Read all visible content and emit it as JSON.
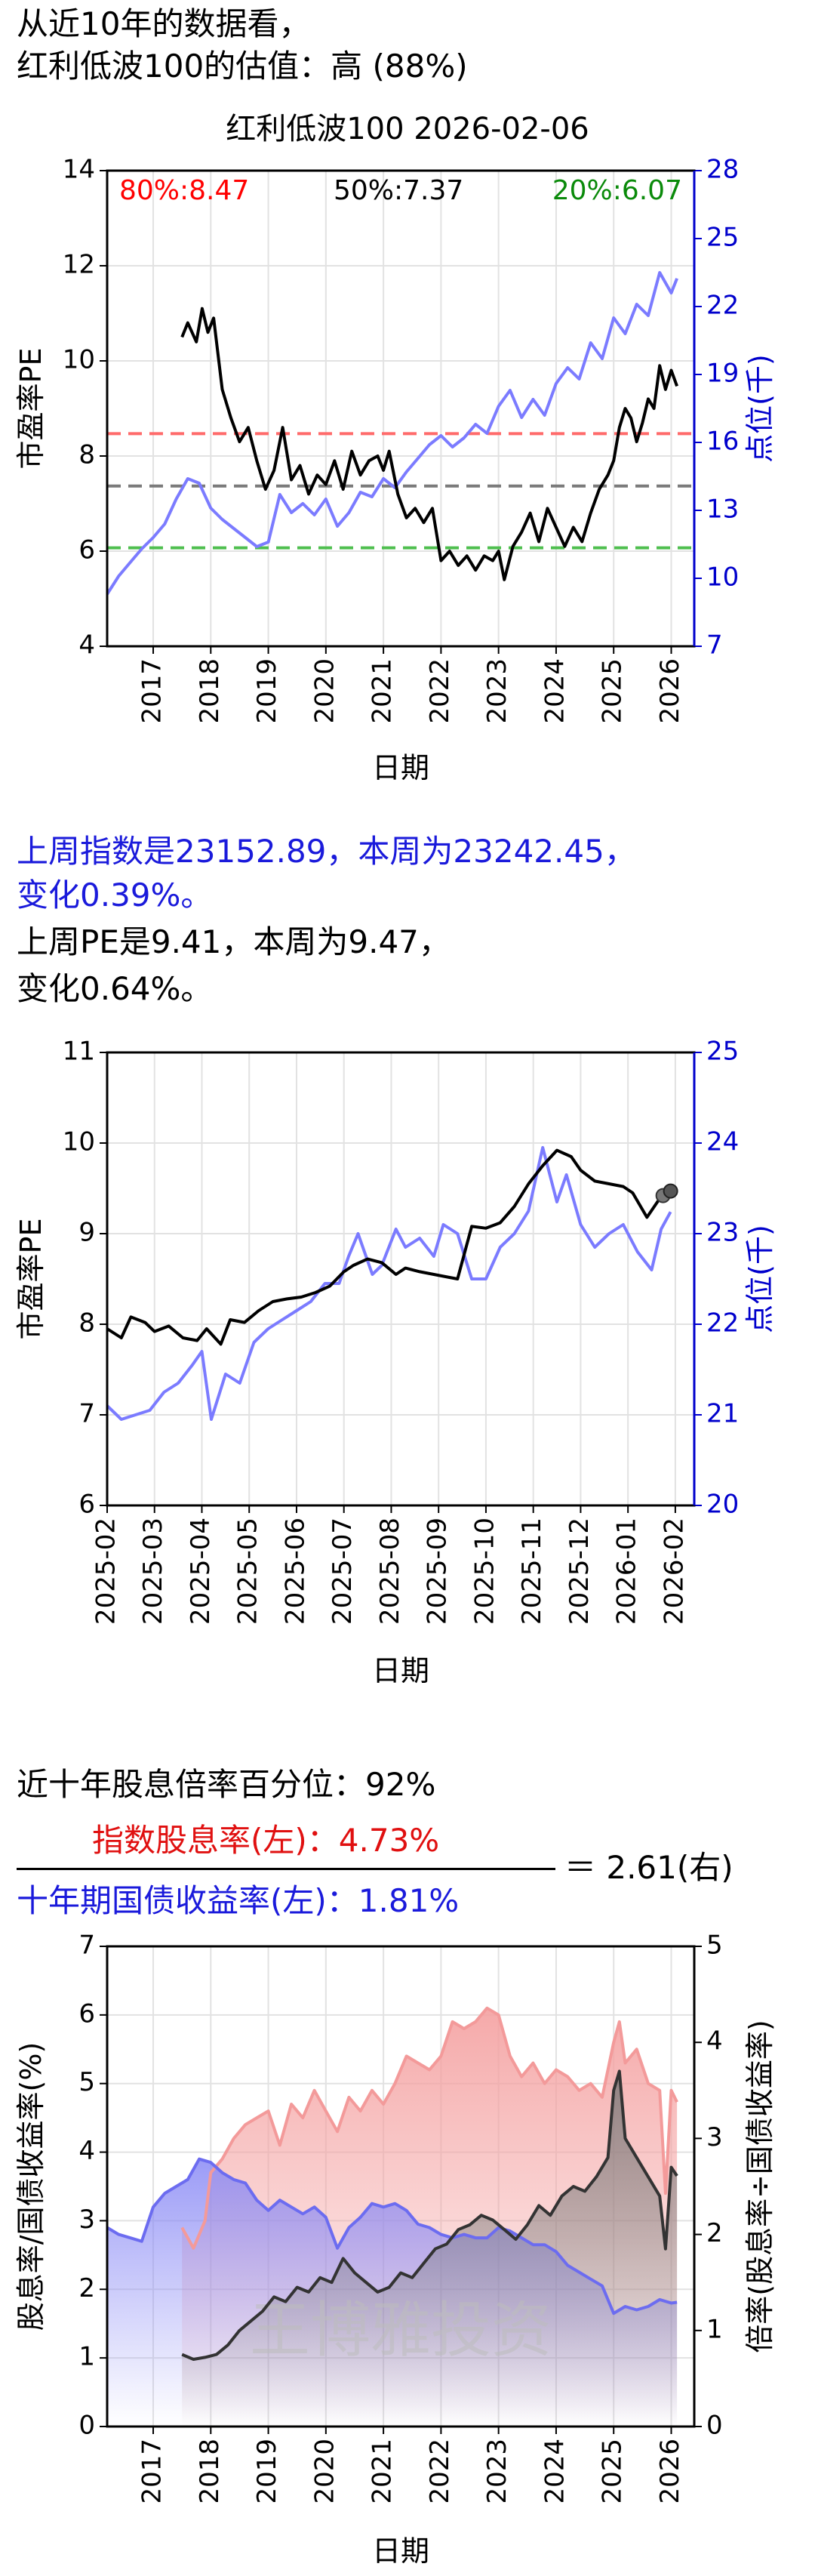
{
  "headline": {
    "line1": "从近10年的数据看，",
    "line2": "红利低波100的估值：高 (88%)"
  },
  "weekly": {
    "line1": "上周指数是23152.89，本周为23242.45，",
    "line2": "变化0.39%。",
    "line3": "上周PE是9.41，本周为9.47，",
    "line4": "变化0.64%。"
  },
  "dividend": {
    "percentile_text": "近十年股息倍率百分位：92%",
    "numerator_text": "指数股息率(左)：4.73%",
    "denominator_text": "十年期国债收益率(左)：1.81%",
    "ratio_text": "＝ 2.61(右)",
    "watermark": "王博雅投资"
  },
  "colors": {
    "pe": "#000000",
    "index": "#7b7bff",
    "p80": "#ff6b6b",
    "p50": "#7a7a7a",
    "p20": "#4fbf4f",
    "dividend": "#f39a9a",
    "bond": "#6c6cf0",
    "ratio": "#333333",
    "axis_right": "#0000cc"
  },
  "chart_data": [
    {
      "type": "line",
      "title": "红利低波100 2026-02-06",
      "xlabel": "日期",
      "ylabel": "市盈率PE",
      "ylabel_right": "点位(千)",
      "xlim": [
        2016.2,
        2026.4
      ],
      "ylim": [
        4,
        14
      ],
      "ylim_right": [
        7,
        28
      ],
      "x_ticks": [
        2017,
        2018,
        2019,
        2020,
        2021,
        2022,
        2023,
        2024,
        2025,
        2026
      ],
      "y_ticks": [
        4,
        6,
        8,
        10,
        12,
        14
      ],
      "y_ticks_right": [
        7,
        10,
        13,
        16,
        19,
        22,
        25,
        28
      ],
      "grid": true,
      "percentile_lines": [
        {
          "label": "80%:8.47",
          "value": 8.47,
          "color": "#ff6b6b"
        },
        {
          "label": "50%:7.37",
          "value": 7.37,
          "color": "#7a7a7a"
        },
        {
          "label": "20%:6.07",
          "value": 6.07,
          "color": "#4fbf4f"
        }
      ],
      "series": [
        {
          "name": "市盈率PE",
          "axis": "left",
          "x": [
            2017.5,
            2017.6,
            2017.75,
            2017.85,
            2017.95,
            2018.05,
            2018.2,
            2018.35,
            2018.5,
            2018.65,
            2018.8,
            2018.95,
            2019.1,
            2019.25,
            2019.4,
            2019.55,
            2019.7,
            2019.85,
            2020.0,
            2020.15,
            2020.3,
            2020.45,
            2020.6,
            2020.75,
            2020.9,
            2021.0,
            2021.1,
            2021.25,
            2021.4,
            2021.55,
            2021.7,
            2021.85,
            2022.0,
            2022.15,
            2022.3,
            2022.45,
            2022.6,
            2022.75,
            2022.9,
            2023.0,
            2023.1,
            2023.25,
            2023.4,
            2023.55,
            2023.7,
            2023.85,
            2024.0,
            2024.15,
            2024.3,
            2024.45,
            2024.6,
            2024.75,
            2024.9,
            2025.0,
            2025.1,
            2025.2,
            2025.3,
            2025.4,
            2025.5,
            2025.6,
            2025.7,
            2025.8,
            2025.9,
            2026.0,
            2026.1
          ],
          "y": [
            10.5,
            10.8,
            10.4,
            11.1,
            10.6,
            10.9,
            9.4,
            8.8,
            8.3,
            8.6,
            7.9,
            7.3,
            7.7,
            8.6,
            7.5,
            7.8,
            7.2,
            7.6,
            7.4,
            7.9,
            7.3,
            8.1,
            7.6,
            7.9,
            8.0,
            7.7,
            8.1,
            7.2,
            6.7,
            6.9,
            6.6,
            6.9,
            5.8,
            6.0,
            5.7,
            5.9,
            5.6,
            5.9,
            5.8,
            6.0,
            5.4,
            6.1,
            6.4,
            6.8,
            6.2,
            6.9,
            6.5,
            6.1,
            6.5,
            6.2,
            6.8,
            7.3,
            7.6,
            7.9,
            8.6,
            9.0,
            8.8,
            8.3,
            8.7,
            9.2,
            9.0,
            9.9,
            9.4,
            9.8,
            9.47
          ]
        },
        {
          "name": "点位(千)",
          "axis": "right",
          "x": [
            2016.2,
            2016.4,
            2016.6,
            2016.8,
            2017.0,
            2017.2,
            2017.4,
            2017.6,
            2017.8,
            2018.0,
            2018.2,
            2018.4,
            2018.6,
            2018.8,
            2019.0,
            2019.2,
            2019.4,
            2019.6,
            2019.8,
            2020.0,
            2020.2,
            2020.4,
            2020.6,
            2020.8,
            2021.0,
            2021.2,
            2021.4,
            2021.6,
            2021.8,
            2022.0,
            2022.2,
            2022.4,
            2022.6,
            2022.8,
            2023.0,
            2023.2,
            2023.4,
            2023.6,
            2023.8,
            2024.0,
            2024.2,
            2024.4,
            2024.6,
            2024.8,
            2025.0,
            2025.2,
            2025.4,
            2025.6,
            2025.8,
            2026.0,
            2026.1
          ],
          "y": [
            9.3,
            10.1,
            10.7,
            11.3,
            11.8,
            12.4,
            13.5,
            14.4,
            14.2,
            13.1,
            12.6,
            12.2,
            11.8,
            11.4,
            11.6,
            13.7,
            12.9,
            13.3,
            12.8,
            13.5,
            12.3,
            12.9,
            13.8,
            13.6,
            14.4,
            14.0,
            14.7,
            15.3,
            15.9,
            16.3,
            15.8,
            16.2,
            16.8,
            16.4,
            17.6,
            18.3,
            17.1,
            17.9,
            17.2,
            18.6,
            19.3,
            18.8,
            20.4,
            19.7,
            21.5,
            20.8,
            22.1,
            21.6,
            23.5,
            22.6,
            23.24
          ]
        }
      ]
    },
    {
      "type": "line",
      "xlabel": "日期",
      "ylabel": "市盈率PE",
      "ylabel_right": "点位(千)",
      "xlim": [
        0,
        12.4
      ],
      "ylim": [
        6,
        11
      ],
      "ylim_right": [
        20,
        25
      ],
      "x_ticks": [
        "2025-02",
        "2025-03",
        "2025-04",
        "2025-05",
        "2025-06",
        "2025-07",
        "2025-08",
        "2025-09",
        "2025-10",
        "2025-11",
        "2025-12",
        "2026-01",
        "2026-02"
      ],
      "y_ticks": [
        6,
        7,
        8,
        9,
        10,
        11
      ],
      "y_ticks_right": [
        20,
        21,
        22,
        23,
        24,
        25
      ],
      "grid": true,
      "series": [
        {
          "name": "市盈率PE",
          "axis": "left",
          "x": [
            0,
            0.3,
            0.5,
            0.8,
            1.0,
            1.3,
            1.6,
            1.9,
            2.1,
            2.4,
            2.6,
            2.9,
            3.2,
            3.5,
            3.8,
            4.1,
            4.4,
            4.7,
            5.0,
            5.2,
            5.5,
            5.8,
            6.1,
            6.3,
            6.6,
            6.9,
            7.2,
            7.4,
            7.7,
            8.0,
            8.3,
            8.6,
            8.9,
            9.2,
            9.5,
            9.8,
            10.0,
            10.3,
            10.6,
            10.9,
            11.1,
            11.4,
            11.7,
            11.9
          ],
          "y": [
            7.95,
            7.85,
            8.08,
            8.02,
            7.92,
            7.98,
            7.85,
            7.82,
            7.95,
            7.78,
            8.05,
            8.02,
            8.15,
            8.25,
            8.28,
            8.3,
            8.35,
            8.42,
            8.58,
            8.65,
            8.72,
            8.68,
            8.55,
            8.62,
            8.58,
            8.55,
            8.52,
            8.5,
            9.08,
            9.06,
            9.12,
            9.3,
            9.55,
            9.75,
            9.92,
            9.85,
            9.7,
            9.58,
            9.55,
            9.52,
            9.45,
            9.18,
            9.41,
            9.47
          ]
        },
        {
          "name": "点位(千)",
          "axis": "right",
          "x": [
            0,
            0.3,
            0.6,
            0.9,
            1.2,
            1.5,
            1.8,
            2.0,
            2.2,
            2.5,
            2.8,
            3.1,
            3.4,
            3.7,
            4.0,
            4.3,
            4.6,
            4.9,
            5.1,
            5.3,
            5.6,
            5.8,
            6.1,
            6.3,
            6.6,
            6.9,
            7.1,
            7.4,
            7.7,
            8.0,
            8.3,
            8.6,
            8.9,
            9.2,
            9.5,
            9.7,
            10.0,
            10.3,
            10.6,
            10.9,
            11.2,
            11.5,
            11.7,
            11.9
          ],
          "y": [
            21.1,
            20.95,
            21.0,
            21.05,
            21.25,
            21.35,
            21.55,
            21.7,
            20.95,
            21.45,
            21.35,
            21.8,
            21.95,
            22.05,
            22.15,
            22.25,
            22.45,
            22.45,
            22.75,
            23.0,
            22.55,
            22.65,
            23.05,
            22.85,
            22.95,
            22.75,
            23.1,
            23.0,
            22.5,
            22.5,
            22.85,
            23.0,
            23.25,
            23.95,
            23.35,
            23.65,
            23.1,
            22.85,
            23.0,
            23.1,
            22.8,
            22.6,
            23.05,
            23.24
          ]
        }
      ]
    },
    {
      "type": "area",
      "xlabel": "日期",
      "ylabel": "股息率/国债收益率(%)",
      "ylabel_right": "倍率(股息率÷国债收益率)",
      "xlim": [
        2016.2,
        2026.4
      ],
      "ylim": [
        0,
        7
      ],
      "ylim_right": [
        0,
        5
      ],
      "x_ticks": [
        2017,
        2018,
        2019,
        2020,
        2021,
        2022,
        2023,
        2024,
        2025,
        2026
      ],
      "y_ticks": [
        0,
        1,
        2,
        3,
        4,
        5,
        6,
        7
      ],
      "y_ticks_right": [
        0,
        1,
        2,
        3,
        4,
        5
      ],
      "grid": true,
      "series": [
        {
          "name": "指数股息率",
          "axis": "left",
          "x": [
            2017.5,
            2017.7,
            2017.9,
            2018.0,
            2018.2,
            2018.4,
            2018.6,
            2018.8,
            2019.0,
            2019.2,
            2019.4,
            2019.6,
            2019.8,
            2020.0,
            2020.2,
            2020.4,
            2020.6,
            2020.8,
            2021.0,
            2021.2,
            2021.4,
            2021.6,
            2021.8,
            2022.0,
            2022.2,
            2022.4,
            2022.6,
            2022.8,
            2023.0,
            2023.2,
            2023.4,
            2023.6,
            2023.8,
            2024.0,
            2024.2,
            2024.4,
            2024.6,
            2024.8,
            2025.0,
            2025.1,
            2025.2,
            2025.4,
            2025.6,
            2025.8,
            2025.9,
            2026.0,
            2026.1
          ],
          "y": [
            2.9,
            2.6,
            3.0,
            3.7,
            3.9,
            4.2,
            4.4,
            4.5,
            4.6,
            4.1,
            4.7,
            4.5,
            4.9,
            4.6,
            4.3,
            4.8,
            4.6,
            4.9,
            4.7,
            5.0,
            5.4,
            5.3,
            5.2,
            5.4,
            5.9,
            5.8,
            5.9,
            6.1,
            6.0,
            5.4,
            5.1,
            5.3,
            5.0,
            5.2,
            5.1,
            4.9,
            5.0,
            4.8,
            5.6,
            5.9,
            5.3,
            5.5,
            5.0,
            4.9,
            3.4,
            4.9,
            4.73
          ]
        },
        {
          "name": "十年期国债收益率",
          "axis": "left",
          "x": [
            2016.2,
            2016.4,
            2016.6,
            2016.8,
            2017.0,
            2017.2,
            2017.4,
            2017.6,
            2017.8,
            2018.0,
            2018.2,
            2018.4,
            2018.6,
            2018.8,
            2019.0,
            2019.2,
            2019.4,
            2019.6,
            2019.8,
            2020.0,
            2020.2,
            2020.4,
            2020.6,
            2020.8,
            2021.0,
            2021.2,
            2021.4,
            2021.6,
            2021.8,
            2022.0,
            2022.2,
            2022.4,
            2022.6,
            2022.8,
            2023.0,
            2023.2,
            2023.4,
            2023.6,
            2023.8,
            2024.0,
            2024.2,
            2024.4,
            2024.6,
            2024.8,
            2025.0,
            2025.2,
            2025.4,
            2025.6,
            2025.8,
            2026.0,
            2026.1
          ],
          "y": [
            2.9,
            2.8,
            2.75,
            2.7,
            3.2,
            3.4,
            3.5,
            3.6,
            3.9,
            3.85,
            3.7,
            3.6,
            3.55,
            3.3,
            3.15,
            3.3,
            3.2,
            3.1,
            3.2,
            3.05,
            2.6,
            2.9,
            3.05,
            3.25,
            3.2,
            3.25,
            3.15,
            2.95,
            2.9,
            2.8,
            2.75,
            2.8,
            2.75,
            2.75,
            2.9,
            2.85,
            2.75,
            2.65,
            2.65,
            2.55,
            2.35,
            2.25,
            2.15,
            2.05,
            1.65,
            1.75,
            1.7,
            1.75,
            1.85,
            1.8,
            1.81
          ]
        },
        {
          "name": "倍率",
          "axis": "right",
          "x": [
            2017.5,
            2017.7,
            2017.9,
            2018.1,
            2018.3,
            2018.5,
            2018.7,
            2018.9,
            2019.1,
            2019.3,
            2019.5,
            2019.7,
            2019.9,
            2020.1,
            2020.3,
            2020.5,
            2020.7,
            2020.9,
            2021.1,
            2021.3,
            2021.5,
            2021.7,
            2021.9,
            2022.1,
            2022.3,
            2022.5,
            2022.7,
            2022.9,
            2023.1,
            2023.3,
            2023.5,
            2023.7,
            2023.9,
            2024.1,
            2024.3,
            2024.5,
            2024.7,
            2024.9,
            2025.0,
            2025.1,
            2025.2,
            2025.4,
            2025.6,
            2025.8,
            2025.9,
            2026.0,
            2026.1
          ],
          "y": [
            0.75,
            0.7,
            0.72,
            0.75,
            0.85,
            1.0,
            1.1,
            1.2,
            1.35,
            1.3,
            1.45,
            1.4,
            1.55,
            1.5,
            1.75,
            1.6,
            1.5,
            1.4,
            1.45,
            1.6,
            1.55,
            1.7,
            1.85,
            1.9,
            2.05,
            2.1,
            2.2,
            2.15,
            2.05,
            1.95,
            2.1,
            2.3,
            2.2,
            2.4,
            2.5,
            2.45,
            2.6,
            2.8,
            3.5,
            3.7,
            3.0,
            2.8,
            2.6,
            2.4,
            1.85,
            2.7,
            2.61
          ]
        }
      ]
    }
  ]
}
